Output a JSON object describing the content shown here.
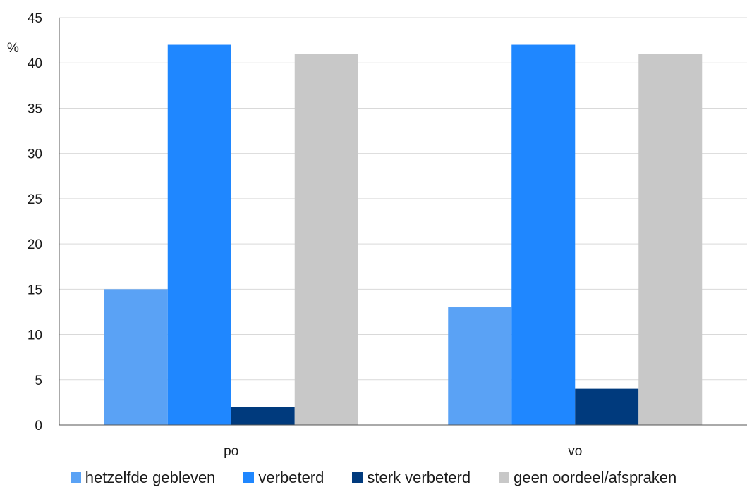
{
  "chart_data": {
    "type": "bar",
    "ylabel": "%",
    "ylim": [
      0,
      45
    ],
    "yticks": [
      "0",
      "5",
      "10",
      "15",
      "20",
      "25",
      "30",
      "35",
      "40",
      "45"
    ],
    "grid": true,
    "legend_position": "bottom",
    "categories": [
      "po",
      "vo"
    ],
    "series": [
      {
        "name": "hetzelfde gebleven",
        "color": "#5aa2f5",
        "values": [
          15,
          13
        ]
      },
      {
        "name": "verbeterd",
        "color": "#1f87ff",
        "values": [
          42,
          42
        ]
      },
      {
        "name": "sterk verbeterd",
        "color": "#003a7d",
        "values": [
          2,
          4
        ]
      },
      {
        "name": "geen oordeel/afspraken",
        "color": "#c8c8c8",
        "values": [
          41,
          41
        ]
      }
    ]
  }
}
